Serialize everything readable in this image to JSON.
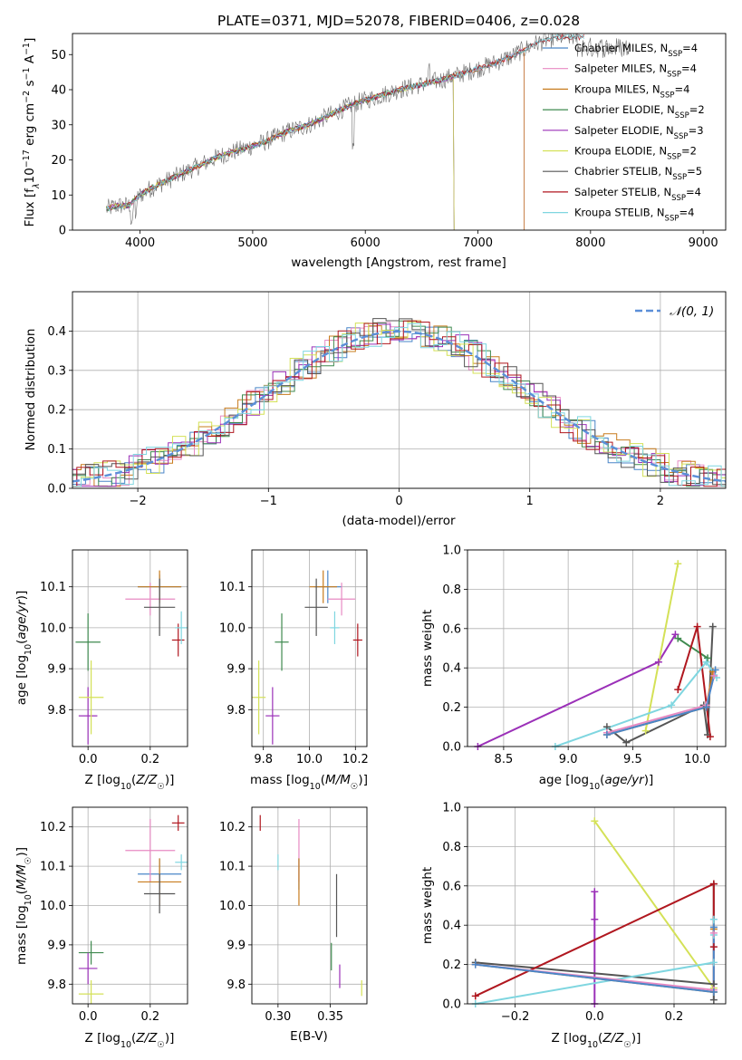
{
  "figure": {
    "title": "PLATE=0371, MJD=52078, FIBERID=0406, z=0.028"
  },
  "models": [
    {
      "name": "Chabrier MILES",
      "label": "Chabrier MILES, N",
      "nssp": "=4",
      "color": "#4a86c8"
    },
    {
      "name": "Salpeter MILES",
      "label": "Salpeter MILES, N",
      "nssp": "=4",
      "color": "#e78ac3"
    },
    {
      "name": "Kroupa MILES",
      "label": "Kroupa MILES, N",
      "nssp": "=4",
      "color": "#c87c1e"
    },
    {
      "name": "Chabrier ELODIE",
      "label": "Chabrier ELODIE, N",
      "nssp": "=2",
      "color": "#3f8a4f"
    },
    {
      "name": "Salpeter ELODIE",
      "label": "Salpeter ELODIE, N",
      "nssp": "=3",
      "color": "#9b30b8"
    },
    {
      "name": "Kroupa ELODIE",
      "label": "Kroupa ELODIE, N",
      "nssp": "=2",
      "color": "#d4e157"
    },
    {
      "name": "Chabrier STELIB",
      "label": "Chabrier STELIB, N",
      "nssp": "=5",
      "color": "#555555"
    },
    {
      "name": "Salpeter STELIB",
      "label": "Salpeter STELIB, N",
      "nssp": "=4",
      "color": "#b0171f"
    },
    {
      "name": "Kroupa STELIB",
      "label": "Kroupa STELIB, N",
      "nssp": "=4",
      "color": "#7fd6e0"
    }
  ],
  "legend_sub": "SSP",
  "chart_data": [
    {
      "id": "spectrum",
      "type": "line",
      "xlabel": "wavelength [Angstrom, rest frame]",
      "ylabel": "Flux [f",
      "ylabel_parts": [
        "Flux [f",
        "λ",
        "10",
        "−17",
        " erg cm",
        "−2",
        " s",
        "−1",
        " A",
        "−1",
        "]"
      ],
      "xlim": [
        3400,
        9200
      ],
      "ylim": [
        0,
        56
      ],
      "xticks": [
        4000,
        5000,
        6000,
        7000,
        8000,
        9000
      ],
      "yticks": [
        0,
        10,
        20,
        30,
        40,
        50
      ],
      "grid": false,
      "legend_position": "right",
      "continuum": [
        [
          3700,
          6
        ],
        [
          3800,
          7
        ],
        [
          3900,
          7
        ],
        [
          4000,
          10
        ],
        [
          4100,
          12
        ],
        [
          4300,
          15
        ],
        [
          4500,
          18
        ],
        [
          4700,
          21
        ],
        [
          4900,
          23
        ],
        [
          5100,
          25
        ],
        [
          5300,
          28
        ],
        [
          5500,
          30
        ],
        [
          5700,
          33
        ],
        [
          5900,
          36
        ],
        [
          6100,
          38
        ],
        [
          6300,
          40
        ],
        [
          6500,
          41.5
        ],
        [
          6700,
          43
        ],
        [
          6900,
          45
        ],
        [
          7100,
          47
        ],
        [
          7300,
          49.5
        ],
        [
          7500,
          53
        ],
        [
          7700,
          55
        ],
        [
          7900,
          55
        ]
      ],
      "cutoffs": [
        {
          "model": "Kroupa ELODIE",
          "x": 6790
        },
        {
          "model": "Salpeter ELODIE",
          "x": 6790
        },
        {
          "model": "Chabrier ELODIE",
          "x": 6790
        },
        {
          "model": "Kroupa MILES",
          "x": 7410
        },
        {
          "model": "Salpeter MILES",
          "x": 7410
        },
        {
          "model": "Chabrier MILES",
          "x": 7410
        }
      ]
    },
    {
      "id": "residuals",
      "type": "step-histogram",
      "xlabel": "(data-model)/error",
      "ylabel": "Normed distribution",
      "xlim": [
        -2.5,
        2.5
      ],
      "ylim": [
        0,
        0.5
      ],
      "xticks": [
        -2,
        -1,
        0,
        1,
        2
      ],
      "yticks": [
        0.0,
        0.1,
        0.2,
        0.3,
        0.4
      ],
      "grid": true,
      "legend": "𝒩(0, 1)",
      "legend_position": "top-right",
      "gaussian": {
        "mu": 0,
        "sigma": 1
      }
    },
    {
      "id": "age-vs-Z",
      "type": "errorbar",
      "xlabel": "Z [log10(Z/Z☉)]",
      "ylabel": "age  [log10(age/yr)]",
      "xlim": [
        -0.05,
        0.32
      ],
      "ylim": [
        9.71,
        10.19
      ],
      "xticks": [
        0.0,
        0.2
      ],
      "yticks": [
        9.8,
        9.9,
        10.0,
        10.1
      ],
      "grid": true,
      "points": [
        {
          "model": "Chabrier MILES",
          "x": 0.23,
          "xerr": 0.07,
          "y": 10.1,
          "yerr": 0.03
        },
        {
          "model": "Salpeter MILES",
          "x": 0.2,
          "xerr": 0.08,
          "y": 10.07,
          "yerr": 0.04
        },
        {
          "model": "Kroupa MILES",
          "x": 0.23,
          "xerr": 0.07,
          "y": 10.1,
          "yerr": 0.04
        },
        {
          "model": "Chabrier ELODIE",
          "x": 0.0,
          "xerr": 0.04,
          "y": 9.965,
          "yerr": 0.07
        },
        {
          "model": "Salpeter ELODIE",
          "x": 0.0,
          "xerr": 0.03,
          "y": 9.785,
          "yerr": 0.07
        },
        {
          "model": "Kroupa ELODIE",
          "x": 0.01,
          "xerr": 0.04,
          "y": 9.83,
          "yerr": 0.09
        },
        {
          "model": "Chabrier STELIB",
          "x": 0.23,
          "xerr": 0.05,
          "y": 10.05,
          "yerr": 0.07
        },
        {
          "model": "Salpeter STELIB",
          "x": 0.29,
          "xerr": 0.02,
          "y": 9.97,
          "yerr": 0.04
        },
        {
          "model": "Kroupa STELIB",
          "x": 0.3,
          "xerr": 0.02,
          "y": 10.0,
          "yerr": 0.04
        }
      ]
    },
    {
      "id": "age-vs-mass",
      "type": "errorbar",
      "xlabel": "mass [log10(M/M☉)]",
      "xlim": [
        9.75,
        10.25
      ],
      "ylim": [
        9.71,
        10.19
      ],
      "xticks": [
        9.8,
        10.0,
        10.2
      ],
      "yticks": [
        9.8,
        9.9,
        10.0,
        10.1
      ],
      "grid": true,
      "points": [
        {
          "model": "Chabrier MILES",
          "x": 10.08,
          "xerr": 0.06,
          "y": 10.1,
          "yerr": 0.04
        },
        {
          "model": "Salpeter MILES",
          "x": 10.14,
          "xerr": 0.06,
          "y": 10.07,
          "yerr": 0.04
        },
        {
          "model": "Kroupa MILES",
          "x": 10.06,
          "xerr": 0.06,
          "y": 10.1,
          "yerr": 0.04
        },
        {
          "model": "Chabrier ELODIE",
          "x": 9.88,
          "xerr": 0.03,
          "y": 9.965,
          "yerr": 0.07
        },
        {
          "model": "Salpeter ELODIE",
          "x": 9.84,
          "xerr": 0.03,
          "y": 9.785,
          "yerr": 0.07
        },
        {
          "model": "Kroupa ELODIE",
          "x": 9.78,
          "xerr": 0.03,
          "y": 9.83,
          "yerr": 0.09
        },
        {
          "model": "Chabrier STELIB",
          "x": 10.03,
          "xerr": 0.05,
          "y": 10.05,
          "yerr": 0.07
        },
        {
          "model": "Salpeter STELIB",
          "x": 10.21,
          "xerr": 0.02,
          "y": 9.97,
          "yerr": 0.04
        },
        {
          "model": "Kroupa STELIB",
          "x": 10.11,
          "xerr": 0.02,
          "y": 10.0,
          "yerr": 0.04
        }
      ]
    },
    {
      "id": "weight-vs-age",
      "type": "line",
      "xlabel": "age  [log10(age/yr)]",
      "ylabel": "mass weight",
      "xlim": [
        8.22,
        10.22
      ],
      "ylim": [
        0,
        1.0
      ],
      "xticks": [
        8.5,
        9.0,
        9.5,
        10.0
      ],
      "yticks": [
        0.0,
        0.2,
        0.4,
        0.6,
        0.8,
        1.0
      ],
      "grid": true,
      "series": [
        {
          "model": "Salpeter ELODIE",
          "points": [
            [
              8.3,
              0.0
            ],
            [
              9.7,
              0.43
            ],
            [
              9.83,
              0.57
            ]
          ]
        },
        {
          "model": "Kroupa ELODIE",
          "points": [
            [
              9.6,
              0.08
            ],
            [
              9.85,
              0.93
            ]
          ]
        },
        {
          "model": "Chabrier ELODIE",
          "points": [
            [
              9.85,
              0.55
            ],
            [
              10.08,
              0.45
            ]
          ]
        },
        {
          "model": "Chabrier STELIB",
          "points": [
            [
              9.3,
              0.1
            ],
            [
              9.45,
              0.02
            ],
            [
              10.05,
              0.21
            ],
            [
              10.08,
              0.06
            ],
            [
              10.12,
              0.61
            ]
          ]
        },
        {
          "model": "Salpeter STELIB",
          "points": [
            [
              9.85,
              0.29
            ],
            [
              10.0,
              0.61
            ],
            [
              10.1,
              0.05
            ]
          ]
        },
        {
          "model": "Kroupa STELIB",
          "points": [
            [
              8.9,
              0.0
            ],
            [
              9.8,
              0.21
            ],
            [
              10.07,
              0.43
            ],
            [
              10.15,
              0.35
            ]
          ]
        },
        {
          "model": "Kroupa MILES",
          "points": [
            [
              9.3,
              0.06
            ],
            [
              10.07,
              0.2
            ],
            [
              10.12,
              0.38
            ]
          ]
        },
        {
          "model": "Salpeter MILES",
          "points": [
            [
              9.3,
              0.07
            ],
            [
              10.07,
              0.21
            ],
            [
              10.13,
              0.36
            ]
          ]
        },
        {
          "model": "Chabrier MILES",
          "points": [
            [
              9.3,
              0.06
            ],
            [
              10.07,
              0.2
            ],
            [
              10.14,
              0.39
            ]
          ]
        }
      ]
    },
    {
      "id": "mass-vs-Z",
      "type": "errorbar",
      "xlabel": "Z [log10(Z/Z☉)]",
      "ylabel": "mass [log10(M/M☉)]",
      "xlim": [
        -0.05,
        0.32
      ],
      "ylim": [
        9.75,
        10.25
      ],
      "xticks": [
        0.0,
        0.2
      ],
      "yticks": [
        9.8,
        9.9,
        10.0,
        10.1,
        10.2
      ],
      "grid": true,
      "points": [
        {
          "model": "Chabrier MILES",
          "x": 0.23,
          "xerr": 0.07,
          "y": 10.08,
          "yerr": 0.04
        },
        {
          "model": "Salpeter MILES",
          "x": 0.2,
          "xerr": 0.08,
          "y": 10.14,
          "yerr": 0.08
        },
        {
          "model": "Kroupa MILES",
          "x": 0.23,
          "xerr": 0.07,
          "y": 10.06,
          "yerr": 0.06
        },
        {
          "model": "Chabrier ELODIE",
          "x": 0.01,
          "xerr": 0.04,
          "y": 9.88,
          "yerr": 0.03
        },
        {
          "model": "Salpeter ELODIE",
          "x": 0.0,
          "xerr": 0.03,
          "y": 9.84,
          "yerr": 0.04
        },
        {
          "model": "Kroupa ELODIE",
          "x": 0.01,
          "xerr": 0.04,
          "y": 9.775,
          "yerr": 0.035
        },
        {
          "model": "Chabrier STELIB",
          "x": 0.23,
          "xerr": 0.05,
          "y": 10.03,
          "yerr": 0.05
        },
        {
          "model": "Salpeter STELIB",
          "x": 0.29,
          "xerr": 0.02,
          "y": 10.21,
          "yerr": 0.02
        },
        {
          "model": "Kroupa STELIB",
          "x": 0.3,
          "xerr": 0.02,
          "y": 10.11,
          "yerr": 0.02
        }
      ]
    },
    {
      "id": "mass-vs-ebv",
      "type": "errorbar",
      "xlabel": "E(B-V)",
      "xlim": [
        0.275,
        0.385
      ],
      "ylim": [
        9.75,
        10.25
      ],
      "xticks": [
        0.3,
        0.35
      ],
      "yticks": [
        9.8,
        9.9,
        10.0,
        10.1,
        10.2
      ],
      "grid": true,
      "points": [
        {
          "model": "Chabrier MILES",
          "x": 0.32,
          "xerr": 0.0,
          "y": 10.08,
          "yerr": 0.04
        },
        {
          "model": "Salpeter MILES",
          "x": 0.32,
          "xerr": 0.0,
          "y": 10.14,
          "yerr": 0.08
        },
        {
          "model": "Kroupa MILES",
          "x": 0.32,
          "xerr": 0.0,
          "y": 10.06,
          "yerr": 0.06
        },
        {
          "model": "Chabrier ELODIE",
          "x": 0.351,
          "xerr": 0.0,
          "y": 9.87,
          "yerr": 0.035
        },
        {
          "model": "Salpeter ELODIE",
          "x": 0.359,
          "xerr": 0.0,
          "y": 9.82,
          "yerr": 0.03
        },
        {
          "model": "Kroupa ELODIE",
          "x": 0.38,
          "xerr": 0.0,
          "y": 9.79,
          "yerr": 0.02
        },
        {
          "model": "Chabrier STELIB",
          "x": 0.356,
          "xerr": 0.0,
          "y": 10.0,
          "yerr": 0.08
        },
        {
          "model": "Salpeter STELIB",
          "x": 0.283,
          "xerr": 0.0,
          "y": 10.21,
          "yerr": 0.02
        },
        {
          "model": "Kroupa STELIB",
          "x": 0.3,
          "xerr": 0.0,
          "y": 10.11,
          "yerr": 0.02
        }
      ]
    },
    {
      "id": "weight-vs-Z",
      "type": "line",
      "xlabel": "Z [log10(Z/Z☉)]",
      "ylabel": "mass weight",
      "xlim": [
        -0.32,
        0.33
      ],
      "ylim": [
        0,
        1.0
      ],
      "xticks": [
        -0.2,
        0.0,
        0.2
      ],
      "yticks": [
        0.0,
        0.2,
        0.4,
        0.6,
        0.8,
        1.0
      ],
      "grid": true,
      "series": [
        {
          "model": "Salpeter ELODIE",
          "points": [
            [
              0.0,
              0.0
            ],
            [
              0.0,
              0.43
            ],
            [
              0.0,
              0.57
            ]
          ]
        },
        {
          "model": "Kroupa ELODIE",
          "points": [
            [
              0.0,
              0.93
            ],
            [
              0.3,
              0.08
            ]
          ]
        },
        {
          "model": "Chabrier STELIB",
          "points": [
            [
              -0.3,
              0.21
            ],
            [
              0.3,
              0.1
            ],
            [
              0.3,
              0.02
            ],
            [
              0.3,
              0.61
            ]
          ]
        },
        {
          "model": "Salpeter STELIB",
          "points": [
            [
              -0.3,
              0.04
            ],
            [
              0.3,
              0.61
            ],
            [
              0.3,
              0.29
            ]
          ]
        },
        {
          "model": "Kroupa STELIB",
          "points": [
            [
              -0.3,
              0.0
            ],
            [
              0.3,
              0.21
            ],
            [
              0.3,
              0.43
            ],
            [
              0.3,
              0.35
            ]
          ]
        },
        {
          "model": "Kroupa MILES",
          "points": [
            [
              -0.3,
              0.2
            ],
            [
              0.3,
              0.06
            ],
            [
              0.3,
              0.38
            ]
          ]
        },
        {
          "model": "Salpeter MILES",
          "points": [
            [
              -0.3,
              0.2
            ],
            [
              0.3,
              0.07
            ],
            [
              0.3,
              0.36
            ]
          ]
        },
        {
          "model": "Chabrier MILES",
          "points": [
            [
              -0.3,
              0.2
            ],
            [
              0.3,
              0.06
            ],
            [
              0.3,
              0.39
            ]
          ]
        }
      ]
    }
  ]
}
